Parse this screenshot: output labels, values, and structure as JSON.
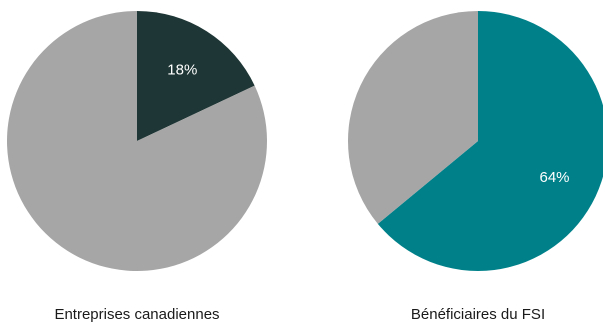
{
  "chart_data": [
    {
      "type": "pie",
      "title": "Entreprises canadiennes",
      "slices": [
        {
          "value": 18,
          "label": "18%",
          "color": "#1e3635"
        },
        {
          "value": 82,
          "label": "",
          "color": "#a6a6a6"
        }
      ]
    },
    {
      "type": "pie",
      "title": "Bénéficiaires du FSI",
      "slices": [
        {
          "value": 64,
          "label": "64%",
          "color": "#00818a"
        },
        {
          "value": 36,
          "label": "",
          "color": "#a6a6a6"
        }
      ]
    }
  ]
}
